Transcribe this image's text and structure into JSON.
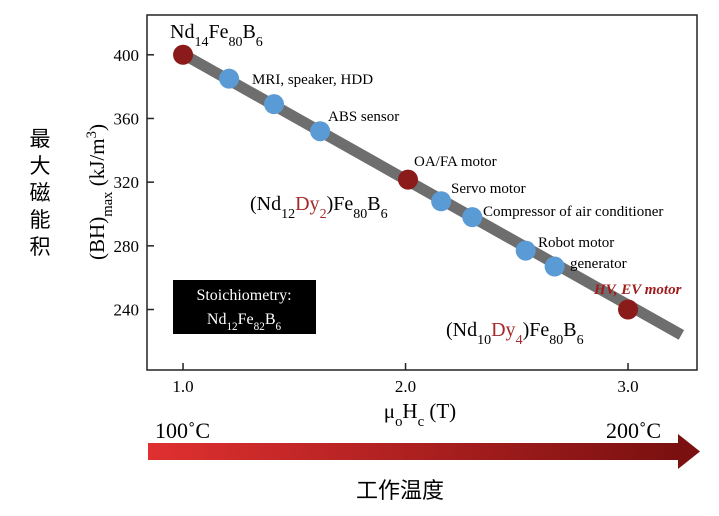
{
  "chart_data": {
    "type": "scatter",
    "y_label_cn": "最大磁能积",
    "y_label": [
      {
        "text": "(BH)"
      },
      {
        "text": "max",
        "sub": true
      },
      {
        "text": "  (kJ/m"
      },
      {
        "text": "3",
        "sup": true
      },
      {
        "text": ")"
      }
    ],
    "x_label": [
      {
        "text": "μ"
      },
      {
        "text": "o",
        "sub": true
      },
      {
        "text": "H"
      },
      {
        "text": "c",
        "sub": true
      },
      {
        "text": " (T)"
      }
    ],
    "xlim": [
      0.838,
      3.31
    ],
    "ylim": [
      202,
      425
    ],
    "xticks": [
      {
        "value": 1,
        "label": "1.0"
      },
      {
        "value": 2,
        "label": "2.0"
      },
      {
        "value": 3,
        "label": "3.0"
      }
    ],
    "yticks": [
      240,
      280,
      320,
      360,
      400
    ],
    "trend": {
      "color": "#6e6e6e",
      "x": [
        0.98,
        3.24
      ],
      "values": [
        402,
        224
      ]
    },
    "series": [
      {
        "x": [
          1.0,
          1.207,
          1.409,
          1.616,
          2.011,
          2.16,
          2.3,
          2.54,
          2.67,
          3.0
        ],
        "values": [
          400,
          385,
          369,
          352,
          321.6,
          308,
          298,
          277,
          267,
          240
        ],
        "colors": [
          "#8b1a1a",
          "#5b9bd5",
          "#5b9bd5",
          "#5b9bd5",
          "#8b1a1a",
          "#5b9bd5",
          "#5b9bd5",
          "#5b9bd5",
          "#5b9bd5",
          "#8b1a1a"
        ]
      }
    ],
    "annotations": [
      {
        "parts": [
          {
            "text": "Nd"
          },
          {
            "text": "14",
            "sub": true
          },
          {
            "text": "Fe"
          },
          {
            "text": "80",
            "sub": true
          },
          {
            "text": "B"
          },
          {
            "text": "6",
            "sub": true
          }
        ]
      },
      {
        "parts": [
          {
            "text": "MRI, speaker, HDD"
          }
        ]
      },
      {
        "parts": [
          {
            "text": "ABS sensor"
          }
        ]
      },
      {
        "parts": [
          {
            "text": "OA/FA motor"
          }
        ]
      },
      {
        "parts": [
          {
            "text": "(Nd"
          },
          {
            "text": "12",
            "sub": true
          },
          {
            "text": "Dy",
            "color": "#a52a2a"
          },
          {
            "text": "2",
            "sub": true,
            "color": "#a52a2a"
          },
          {
            "text": ")Fe"
          },
          {
            "text": "80",
            "sub": true
          },
          {
            "text": "B"
          },
          {
            "text": "6",
            "sub": true
          }
        ]
      },
      {
        "parts": [
          {
            "text": "Servo motor"
          }
        ]
      },
      {
        "parts": [
          {
            "text": "Compressor of air conditioner"
          }
        ]
      },
      {
        "parts": [
          {
            "text": "Robot motor"
          }
        ]
      },
      {
        "parts": [
          {
            "text": "generator"
          }
        ]
      },
      {
        "parts": [
          {
            "text": "HV, EV motor",
            "color": "#a01c1c",
            "italic": true
          }
        ]
      },
      {
        "parts": [
          {
            "text": "(Nd"
          },
          {
            "text": "10",
            "sub": true
          },
          {
            "text": "Dy",
            "color": "#a52a2a"
          },
          {
            "text": "4",
            "sub": true,
            "color": "#a52a2a"
          },
          {
            "text": ")Fe"
          },
          {
            "text": "80",
            "sub": true
          },
          {
            "text": "B"
          },
          {
            "text": "6",
            "sub": true
          }
        ]
      }
    ],
    "inset": [
      [
        {
          "text": "Stoichiometry:"
        }
      ],
      [
        {
          "text": "Nd"
        },
        {
          "text": "12",
          "sub": true
        },
        {
          "text": "Fe"
        },
        {
          "text": "82",
          "sub": true
        },
        {
          "text": "B"
        },
        {
          "text": "6",
          "sub": true
        }
      ]
    ],
    "temperature_axis": {
      "start": "100˚C",
      "end": "200˚C",
      "label": "工作温度"
    }
  }
}
